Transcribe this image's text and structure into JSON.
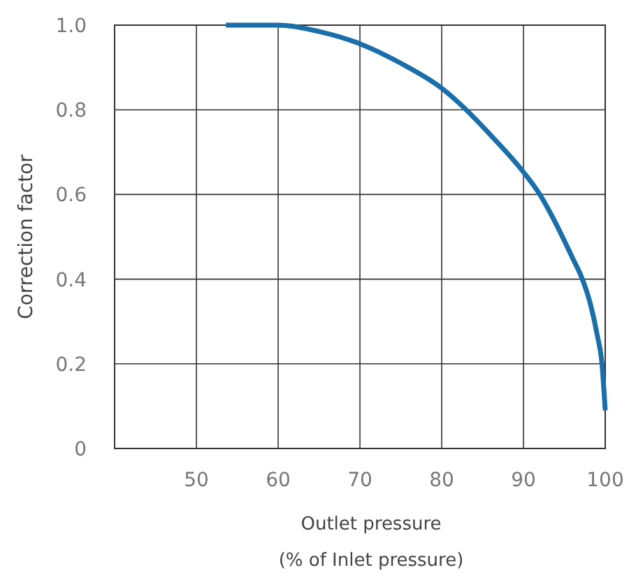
{
  "chart_data": {
    "type": "line",
    "xlabel": "Outlet pressure\n(% of Inlet pressure)",
    "ylabel": "Correction factor",
    "xlim": [
      40,
      100
    ],
    "xticks": [
      50,
      60,
      70,
      80,
      90,
      100
    ],
    "ylim": [
      0,
      1
    ],
    "yticks": [
      0,
      0.2,
      0.4,
      0.6,
      0.8,
      {
        "value": 1,
        "label": "1.0"
      }
    ],
    "grid": true,
    "series": [
      {
        "color": "#1a6fab",
        "x": [
          53.6,
          60,
          65,
          70,
          75,
          80,
          83,
          86,
          90,
          92,
          94,
          96,
          97.2,
          98.2,
          99,
          99.6,
          100
        ],
        "values": [
          1.0,
          1.0,
          0.985,
          0.956,
          0.91,
          0.851,
          0.8,
          0.74,
          0.653,
          0.6,
          0.53,
          0.45,
          0.4,
          0.34,
          0.27,
          0.2,
          0.09
        ]
      }
    ]
  }
}
